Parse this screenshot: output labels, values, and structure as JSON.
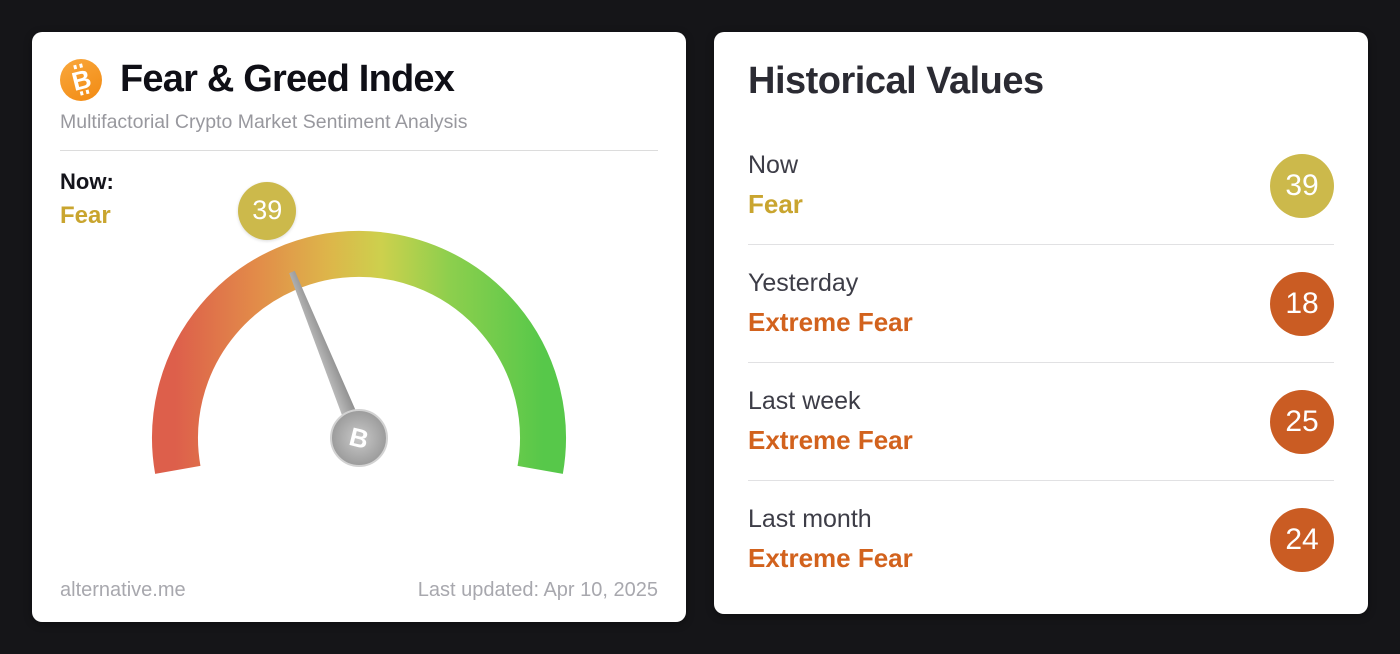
{
  "icons": {
    "bitcoin_glyph": "B"
  },
  "theme": {
    "background": "#151518",
    "card_bg": "#ffffff",
    "bitcoin_orange": "#f7931a",
    "fear_gold": "#c9a52f",
    "badge_gold": "#ccb94b",
    "extreme_fear_orange": "#d2621d",
    "badge_orange": "#ca5c23"
  },
  "left_card": {
    "title": "Fear & Greed Index",
    "subtitle": "Multifactorial Crypto Market Sentiment Analysis",
    "now_label": "Now:",
    "now_classification": "Fear",
    "gauge": {
      "value": 39,
      "min": 0,
      "max": 100
    },
    "footer_left": "alternative.me",
    "footer_right": "Last updated: Apr 10, 2025"
  },
  "right_card": {
    "title": "Historical Values",
    "rows": [
      {
        "label": "Now",
        "classification": "Fear",
        "value": 39
      },
      {
        "label": "Yesterday",
        "classification": "Extreme Fear",
        "value": 18
      },
      {
        "label": "Last week",
        "classification": "Extreme Fear",
        "value": 25
      },
      {
        "label": "Last month",
        "classification": "Extreme Fear",
        "value": 24
      }
    ]
  },
  "chart_data": {
    "type": "gauge",
    "title": "Fear & Greed Index",
    "value": 39,
    "classification": "Fear",
    "range": [
      0,
      100
    ],
    "color_scale": [
      "#dd5f4b",
      "#e2b54a",
      "#57c84a"
    ],
    "historical": [
      {
        "label": "Now",
        "value": 39,
        "classification": "Fear"
      },
      {
        "label": "Yesterday",
        "value": 18,
        "classification": "Extreme Fear"
      },
      {
        "label": "Last week",
        "value": 25,
        "classification": "Extreme Fear"
      },
      {
        "label": "Last month",
        "value": 24,
        "classification": "Extreme Fear"
      }
    ]
  }
}
